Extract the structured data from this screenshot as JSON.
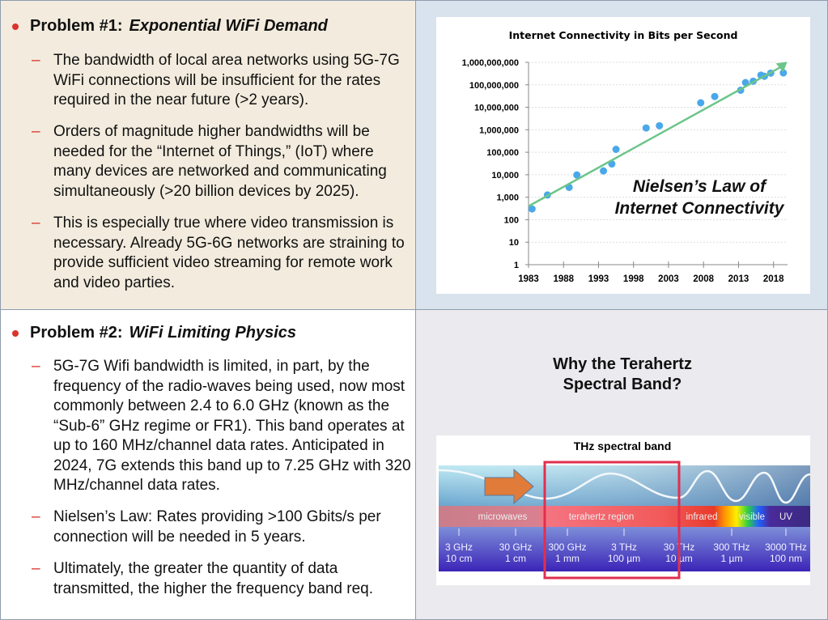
{
  "problem1": {
    "label": "Problem #1:",
    "title": "Exponential WiFi Demand",
    "bullets": [
      "The bandwidth of local area networks using 5G-7G WiFi connections will be insufficient for the rates required in the near future (>2 years).",
      "Orders of magnitude higher bandwidths will be needed for the “Internet of Things,” (IoT) where many devices are networked and communicating simultaneously (>20 billion devices by 2025).",
      "This is especially true where video transmission is necessary.  Already 5G-6G networks are straining to provide sufficient video streaming for remote work and video parties."
    ]
  },
  "problem2": {
    "label": "Problem #2:",
    "title": "WiFi Limiting Physics",
    "bullets": [
      "5G-7G Wifi bandwidth is limited, in part, by the frequency of the radio-waves being used,  now most commonly between 2.4 to 6.0 GHz (known as the “Sub-6” GHz regime or FR1).  This band operates at up to 160 MHz/channel data rates.  Anticipated in 2024, 7G extends this band up to 7.25 GHz with 320 MHz/channel data rates.",
      "Nielsen’s Law:  Rates providing >100 Gbits/s per connection will be needed in 5 years.",
      "Ultimately, the greater the quantity of data transmitted, the higher the frequency band req."
    ]
  },
  "dash": "–",
  "chart_data": {
    "type": "scatter",
    "title": "Internet Connectivity in Bits per Second",
    "annotation": [
      "Nielsen’s Law of",
      "Internet Connectivity"
    ],
    "xlim": [
      1983,
      2020
    ],
    "ylim_log10": [
      0,
      9
    ],
    "yscale": "log",
    "xticks": [
      "1983",
      "1988",
      "1993",
      "1998",
      "2003",
      "2008",
      "2013",
      "2018"
    ],
    "yticks": [
      "1",
      "10",
      "100",
      "1,000",
      "10,000",
      "100,000",
      "1,000,000",
      "10,000,000",
      "100,000,000",
      "1,000,000,000"
    ],
    "points": [
      [
        1983.5,
        2.48
      ],
      [
        1985.7,
        3.1
      ],
      [
        1988.8,
        3.44
      ],
      [
        1989.9,
        3.99
      ],
      [
        1993.7,
        4.17
      ],
      [
        1994.9,
        4.48
      ],
      [
        1995.5,
        5.13
      ],
      [
        1999.8,
        6.08
      ],
      [
        2001.7,
        6.18
      ],
      [
        2007.6,
        7.2
      ],
      [
        2009.6,
        7.48
      ],
      [
        2013.3,
        7.76
      ],
      [
        2014,
        8.1
      ],
      [
        2015.1,
        8.16
      ],
      [
        2016.2,
        8.43
      ],
      [
        2016.7,
        8.38
      ],
      [
        2017.6,
        8.52
      ],
      [
        2019.4,
        8.53
      ]
    ],
    "trend": [
      [
        1983,
        2.6
      ],
      [
        2019.5,
        8.88
      ]
    ],
    "point_color": "#4aa8ea",
    "trend_color": "#6cc58a",
    "grid": true
  },
  "spectrum": {
    "heading": "Why the Terahertz Spectral Band?",
    "title": "THz spectral band",
    "regions": [
      "microwaves",
      "terahertz region",
      "infrared",
      "visible",
      "UV"
    ],
    "ticks": [
      [
        "3 GHz",
        "10 cm"
      ],
      [
        "30 GHz",
        "1 cm"
      ],
      [
        "300 GHz",
        "1 mm"
      ],
      [
        "3 THz",
        "100 µm"
      ],
      [
        "30 THz",
        "10 µm"
      ],
      [
        "300 THz",
        "1 µm"
      ],
      [
        "3000 THz",
        "100 nm"
      ]
    ],
    "highlight_color": "#e0304e",
    "arrow_color": "#e07b39"
  }
}
